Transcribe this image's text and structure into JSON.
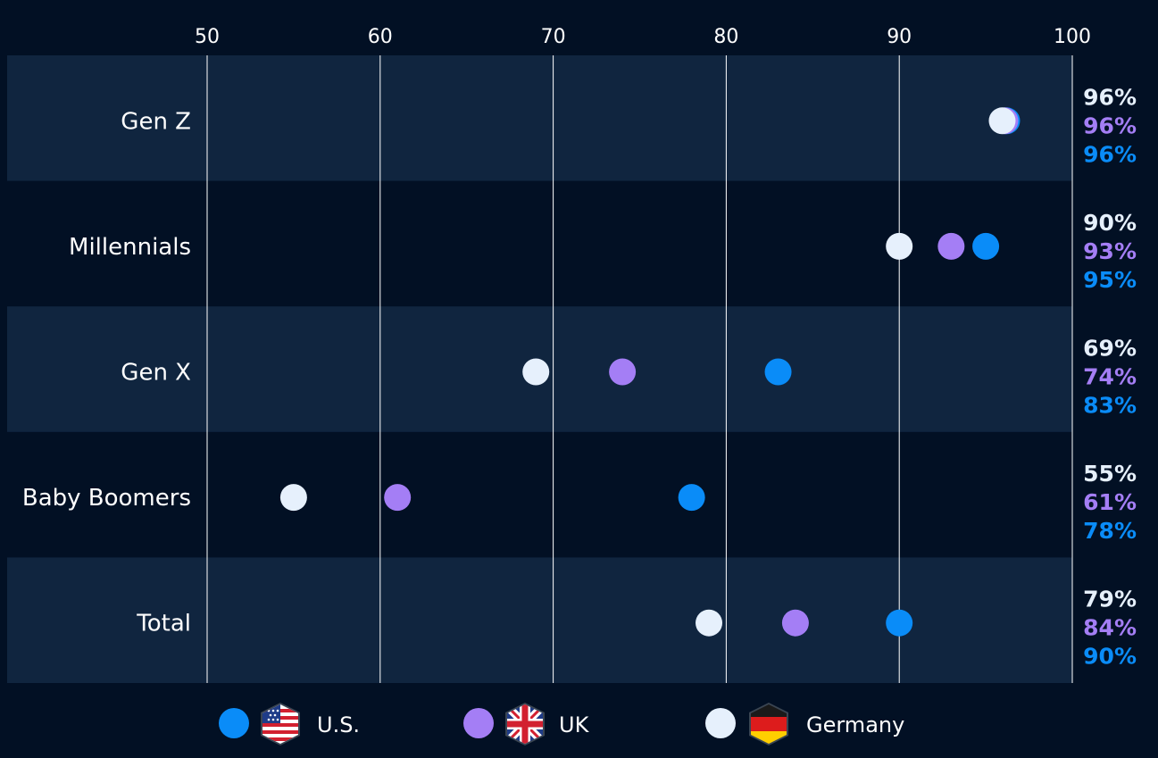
{
  "chart_data": {
    "type": "scatter",
    "title": "",
    "xlabel": "",
    "ylabel": "",
    "xlim": [
      50,
      100
    ],
    "ticks": [
      "50",
      "60",
      "70",
      "80",
      "90",
      "100"
    ],
    "categories": [
      "Gen Z",
      "Millennials",
      "Gen X",
      "Baby Boomers",
      "Total"
    ],
    "series": [
      {
        "name": "U.S.",
        "color": "#0a8cf8",
        "values": [
          96,
          95,
          83,
          78,
          90
        ],
        "labels": [
          "96%",
          "95%",
          "83%",
          "78%",
          "90%"
        ]
      },
      {
        "name": "UK",
        "color": "#a47ef5",
        "values": [
          96,
          93,
          74,
          61,
          84
        ],
        "labels": [
          "96%",
          "93%",
          "74%",
          "61%",
          "84%"
        ]
      },
      {
        "name": "Germany",
        "color": "#e6f0fc",
        "values": [
          96,
          90,
          69,
          55,
          79
        ],
        "labels": [
          "96%",
          "90%",
          "69%",
          "55%",
          "79%"
        ]
      }
    ],
    "legend_position": "bottom"
  },
  "legend": {
    "items": [
      {
        "label": "U.S.",
        "color": "#0a8cf8",
        "flag": "us-flag-icon"
      },
      {
        "label": "UK",
        "color": "#a47ef5",
        "flag": "uk-flag-icon"
      },
      {
        "label": "Germany",
        "color": "#e6f0fc",
        "flag": "germany-flag-icon"
      }
    ]
  },
  "colors": {
    "background": "#021024",
    "band": "#10253f",
    "grid": "#ffffff",
    "text": "#ffffff"
  }
}
